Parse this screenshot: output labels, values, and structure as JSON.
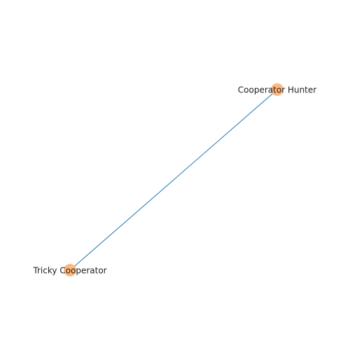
{
  "graph": {
    "nodes": [
      {
        "id": "n1",
        "label": "Cooperator Hunter"
      },
      {
        "id": "n2",
        "label": "Tricky Cooperator"
      }
    ],
    "edges": [
      {
        "source": "n1",
        "target": "n2"
      }
    ]
  },
  "colors": {
    "node_fill": "#fdb97d",
    "edge_stroke": "#1f77b4",
    "label_text": "#222222",
    "background": "#ffffff"
  }
}
